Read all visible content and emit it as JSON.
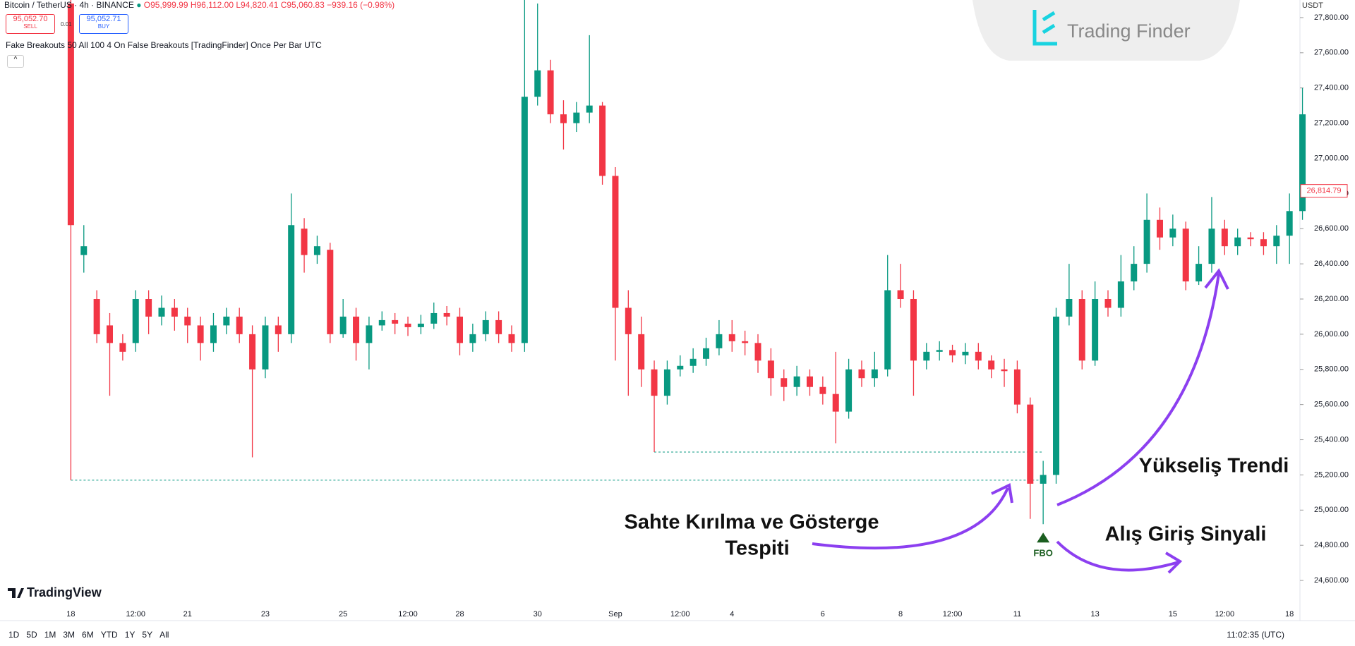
{
  "header": {
    "symbol": "Bitcoin / TetherUS · 4h · BINANCE",
    "ohlc": "O95,999.99 H96,112.00 L94,820.41 C95,060.83 −939.16 (−0.98%)",
    "sell_price": "95,052.70",
    "sell": "SELL",
    "spread": "0.01",
    "buy_price": "95,052.71",
    "buy": "BUY",
    "indicator": "Fake Breakouts 50 All 100 4 On False Breakouts [TradingFinder] Once Per Bar UTC"
  },
  "logo": "Trading Finder",
  "watermark": "TradingView",
  "toolbar": {
    "ranges": [
      "1D",
      "5D",
      "1M",
      "3M",
      "6M",
      "YTD",
      "1Y",
      "5Y",
      "All"
    ],
    "clock": "11:02:35 (UTC)"
  },
  "chart_data": {
    "type": "candlestick",
    "currency": "USDT",
    "up_color": "#089981",
    "down_color": "#f23645",
    "categories": [
      "18",
      null,
      null,
      null,
      null,
      "12:00",
      null,
      null,
      null,
      "21",
      null,
      null,
      null,
      null,
      null,
      "23",
      null,
      null,
      null,
      null,
      null,
      "25",
      null,
      null,
      null,
      null,
      "12:00",
      null,
      null,
      null,
      "28",
      null,
      null,
      null,
      null,
      null,
      "30",
      null,
      null,
      null,
      null,
      null,
      "Sep",
      null,
      null,
      null,
      null,
      "12:00",
      null,
      null,
      null,
      "4",
      null,
      null,
      null,
      null,
      null,
      null,
      "6",
      null,
      null,
      null,
      null,
      null,
      "8",
      null,
      null,
      null,
      "12:00",
      null,
      null,
      null,
      null,
      "11",
      null,
      null,
      null,
      null,
      null,
      "13",
      null,
      null,
      null,
      null,
      null,
      "15",
      null,
      null,
      null,
      "12:00",
      null,
      null,
      null,
      null,
      "18",
      null
    ],
    "open": [
      27880,
      26450,
      26200,
      26050,
      25950,
      25950,
      26200,
      26100,
      26150,
      26100,
      26050,
      25950,
      26050,
      26100,
      26000,
      25800,
      26050,
      26000,
      26600,
      26450,
      26480,
      26000,
      26100,
      25950,
      26050,
      26080,
      26060,
      26040,
      26060,
      26120,
      26100,
      25950,
      26000,
      26080,
      26000,
      25950,
      27350,
      27500,
      27250,
      27200,
      27260,
      27300,
      26900,
      26150,
      26000,
      25800,
      25650,
      25800,
      25820,
      25860,
      25920,
      26000,
      25960,
      25950,
      25850,
      25750,
      25700,
      25760,
      25700,
      25660,
      25560,
      25800,
      25750,
      25800,
      26250,
      26200,
      25850,
      25900,
      25910,
      25880,
      25900,
      25850,
      25800,
      25800,
      25600,
      25150,
      25200,
      26100,
      26200,
      25850,
      26200,
      26150,
      26300,
      26400,
      26650,
      26550,
      26600,
      26300,
      26400,
      26600,
      26500,
      26550,
      26540,
      26500,
      26560,
      26700
    ],
    "high": [
      27900,
      26620,
      26250,
      26120,
      26000,
      26250,
      26250,
      26220,
      26200,
      26150,
      26100,
      26120,
      26150,
      26150,
      26050,
      26100,
      26100,
      26800,
      26660,
      26560,
      26520,
      26200,
      26150,
      26100,
      26130,
      26120,
      26100,
      26110,
      26180,
      26160,
      26150,
      26060,
      26130,
      26130,
      26050,
      27900,
      27880,
      27560,
      27330,
      27320,
      27700,
      27320,
      26950,
      26250,
      26100,
      25850,
      25850,
      25880,
      25920,
      25980,
      26080,
      26080,
      26020,
      26000,
      25920,
      25800,
      25820,
      25800,
      25760,
      25900,
      25860,
      25850,
      25900,
      26450,
      26400,
      26250,
      25950,
      25960,
      25940,
      25950,
      25950,
      25880,
      25860,
      25850,
      25640,
      25280,
      26150,
      26400,
      26250,
      26300,
      26250,
      26450,
      26500,
      26800,
      26720,
      26680,
      26640,
      26500,
      26780,
      26650,
      26600,
      26580,
      26580,
      26620,
      26800,
      27400
    ],
    "low": [
      25170,
      26350,
      25950,
      25650,
      25850,
      25900,
      26000,
      26050,
      26020,
      25950,
      25850,
      25900,
      26000,
      25950,
      25300,
      25750,
      25900,
      25950,
      26350,
      26400,
      25950,
      25980,
      25850,
      25800,
      26020,
      26000,
      25990,
      26000,
      26030,
      26050,
      25880,
      25900,
      25960,
      25950,
      25900,
      25900,
      27300,
      27200,
      27050,
      27150,
      27200,
      26850,
      25850,
      25650,
      25700,
      25330,
      25600,
      25760,
      25780,
      25820,
      25880,
      25900,
      25880,
      25780,
      25650,
      25620,
      25650,
      25650,
      25600,
      25380,
      25520,
      25700,
      25700,
      25760,
      26150,
      25650,
      25800,
      25850,
      25840,
      25830,
      25800,
      25750,
      25700,
      25550,
      24950,
      24920,
      25150,
      26050,
      25800,
      25820,
      26100,
      26100,
      26250,
      26350,
      26480,
      26500,
      26250,
      26280,
      26350,
      26450,
      26450,
      26500,
      26450,
      26400,
      26400,
      26650
    ],
    "close": [
      26620,
      26500,
      26000,
      25950,
      25900,
      26200,
      26100,
      26150,
      26100,
      26050,
      25950,
      26050,
      26100,
      26000,
      25800,
      26050,
      26000,
      26620,
      26450,
      26500,
      26000,
      26100,
      25950,
      26050,
      26080,
      26060,
      26040,
      26060,
      26120,
      26100,
      25950,
      26000,
      26080,
      26000,
      25950,
      27350,
      27500,
      27250,
      27200,
      27260,
      27300,
      26900,
      26150,
      26000,
      25800,
      25650,
      25800,
      25820,
      25860,
      25920,
      26000,
      25960,
      25950,
      25850,
      25750,
      25700,
      25760,
      25700,
      25660,
      25560,
      25800,
      25750,
      25800,
      26250,
      26200,
      25850,
      25900,
      25910,
      25880,
      25900,
      25850,
      25800,
      25790,
      25600,
      25150,
      25200,
      26100,
      26200,
      25850,
      26200,
      26150,
      26300,
      26400,
      26650,
      26550,
      26600,
      26300,
      26400,
      26600,
      26500,
      26550,
      26540,
      26500,
      26560,
      26700,
      27250
    ],
    "ylim": [
      24500,
      27900
    ],
    "yticks": [
      {
        "value": 24600,
        "label": "24,600.00"
      },
      {
        "value": 24800,
        "label": "24,800.00"
      },
      {
        "value": 25000,
        "label": "25,000.00"
      },
      {
        "value": 25200,
        "label": "25,200.00"
      },
      {
        "value": 25400,
        "label": "25,400.00"
      },
      {
        "value": 25600,
        "label": "25,600.00"
      },
      {
        "value": 25800,
        "label": "25,800.00"
      },
      {
        "value": 26000,
        "label": "26,000.00"
      },
      {
        "value": 26200,
        "label": "26,200.00"
      },
      {
        "value": 26400,
        "label": "26,400.00"
      },
      {
        "value": 26600,
        "label": "26,600.00"
      },
      {
        "value": 26800,
        "label": "26,800.00"
      },
      {
        "value": 27000,
        "label": "27,000.00"
      },
      {
        "value": 27200,
        "label": "27,200.00"
      },
      {
        "value": 27400,
        "label": "27,400.00"
      },
      {
        "value": 27600,
        "label": "27,600.00"
      },
      {
        "value": 27800,
        "label": "27,800.00"
      }
    ],
    "last_price": {
      "value": 26814.79,
      "label": "26,814.79"
    },
    "levels": [
      {
        "value": 25170,
        "from": 0,
        "to": 75
      },
      {
        "value": 25330,
        "from": 45,
        "to": 75
      }
    ],
    "signals": [
      {
        "index": 75,
        "label": "FBO"
      }
    ],
    "annotations": [
      "Sahte Kırılma ve Gösterge",
      "Tespiti",
      "Yükseliş Trendi",
      "Alış Giriş Sinyali"
    ]
  }
}
